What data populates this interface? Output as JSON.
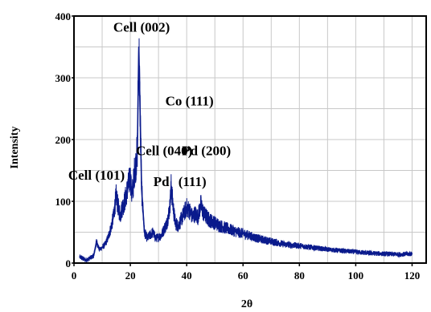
{
  "chart_data": {
    "type": "line",
    "title": "",
    "xlabel": "2θ",
    "ylabel": "Intensity",
    "xlim": [
      0,
      125
    ],
    "ylim": [
      0,
      400
    ],
    "xticks": [
      0,
      20,
      40,
      60,
      80,
      100,
      120
    ],
    "yticks": [
      0,
      100,
      200,
      300,
      400
    ],
    "grid": true,
    "line_color": "#0a1a8c",
    "grid_color": "#c8c8c8",
    "series": [
      {
        "x": [
          2,
          3,
          4,
          5,
          6,
          7,
          8,
          9,
          10,
          11,
          12,
          13,
          14,
          15,
          15.5,
          16,
          16.5,
          17,
          18,
          19,
          20,
          20.5,
          21,
          21.5,
          22,
          22.5,
          23,
          23.5,
          24,
          25,
          26,
          27,
          28,
          29,
          30,
          31,
          32,
          33,
          34,
          34.5,
          35,
          35.5,
          36,
          37,
          38,
          39,
          40,
          41,
          42,
          43,
          44,
          45,
          46,
          47,
          48,
          50,
          52,
          55,
          58,
          60,
          65,
          70,
          75,
          80,
          85,
          90,
          95,
          100,
          105,
          110,
          115,
          120
        ],
        "y": [
          10,
          8,
          5,
          6,
          9,
          12,
          35,
          22,
          25,
          30,
          40,
          55,
          75,
          110,
          95,
          85,
          78,
          88,
          100,
          120,
          140,
          110,
          125,
          150,
          160,
          185,
          350,
          240,
          120,
          50,
          40,
          45,
          50,
          40,
          42,
          45,
          55,
          65,
          90,
          125,
          100,
          80,
          65,
          60,
          70,
          80,
          90,
          85,
          75,
          80,
          75,
          95,
          80,
          75,
          70,
          65,
          60,
          55,
          50,
          48,
          40,
          35,
          30,
          28,
          25,
          22,
          20,
          18,
          16,
          15,
          14,
          15
        ]
      }
    ],
    "annotations": [
      {
        "text": "Cell (002)",
        "x": 24,
        "y": 375
      },
      {
        "text": "Co (111)",
        "x": 41,
        "y": 255
      },
      {
        "text": "Cell (040)",
        "x": 32,
        "y": 175
      },
      {
        "text": "Pd (200)",
        "x": 47,
        "y": 175
      },
      {
        "text": "Cell (101)",
        "x": 8,
        "y": 135
      },
      {
        "text": "Pd",
        "x": 31,
        "y": 125
      },
      {
        "text": "(111)",
        "x": 42,
        "y": 125
      }
    ]
  }
}
